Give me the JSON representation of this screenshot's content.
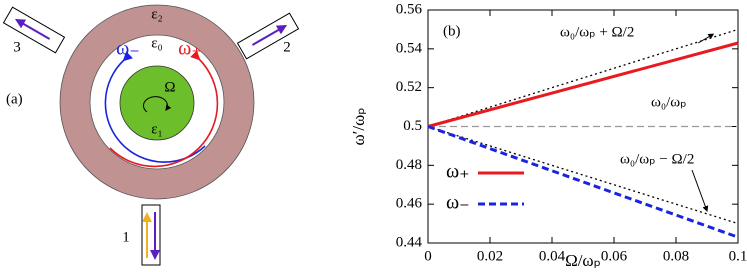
{
  "diagram": {
    "panel_label": "(a)",
    "outer_medium": "ε₂",
    "gap_medium": "ε₀",
    "inner_medium": "ε₁",
    "rotation": "Ω",
    "mode_minus": "ω₋",
    "mode_plus": "ω₊",
    "ports": [
      "1",
      "2",
      "3"
    ]
  },
  "chart_data": {
    "type": "line",
    "panel_label": "(b)",
    "x_label": "Ω/ωₚ",
    "y_label": "ω′/ωₚ",
    "x": [
      0,
      0.1
    ],
    "series": [
      {
        "name": "ω₊",
        "color": "#e8191f",
        "style": "solid",
        "values": [
          0.5,
          0.543
        ]
      },
      {
        "name": "ω₋",
        "color": "#1a24e0",
        "style": "dashed",
        "values": [
          0.5,
          0.443
        ]
      }
    ],
    "reference_lines": [
      {
        "label": "ω₀/ωₚ + Ω/2",
        "color": "#000000",
        "style": "dotted",
        "values": [
          0.5,
          0.55
        ]
      },
      {
        "label": "ω₀/ωₚ",
        "color": "#999999",
        "style": "dashed",
        "values": [
          0.5,
          0.5
        ]
      },
      {
        "label": "ω₀/ωₚ − Ω/2",
        "color": "#000000",
        "style": "dotted",
        "values": [
          0.5,
          0.45
        ]
      }
    ],
    "xlim": [
      0,
      0.1
    ],
    "xticks": [
      0,
      0.02,
      0.04,
      0.06,
      0.08,
      0.1
    ],
    "ylim": [
      0.44,
      0.56
    ],
    "yticks": [
      0.44,
      0.46,
      0.48,
      0.5,
      0.52,
      0.54,
      0.56
    ],
    "legend": "lower-left"
  }
}
